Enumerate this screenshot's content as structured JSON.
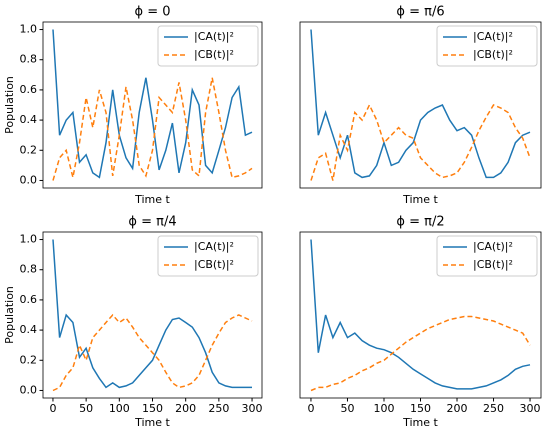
{
  "chart_data": [
    {
      "type": "line",
      "title": "ϕ = 0",
      "xlabel": "Time t",
      "ylabel": "Population",
      "legend": "upper right",
      "x": [
        0,
        10,
        20,
        30,
        40,
        50,
        60,
        70,
        80,
        90,
        100,
        110,
        120,
        130,
        140,
        150,
        160,
        170,
        180,
        190,
        200,
        210,
        220,
        230,
        240,
        250,
        260,
        270,
        280,
        290,
        300
      ],
      "xlim": [
        -15,
        315
      ],
      "ylim": [
        -0.05,
        1.05
      ],
      "yticks": [
        {
          "value": 0,
          "label": "0.0"
        },
        {
          "value": 0.2,
          "label": "0.2"
        },
        {
          "value": 0.4,
          "label": "0.4"
        },
        {
          "value": 0.6,
          "label": "0.6"
        },
        {
          "value": 0.8,
          "label": "0.8"
        },
        {
          "value": 1,
          "label": "1.0"
        }
      ],
      "series": [
        {
          "name": "|CA(t)|²",
          "color": "#1f77b4",
          "linestyle": "solid",
          "values": [
            1.0,
            0.3,
            0.4,
            0.45,
            0.12,
            0.17,
            0.05,
            0.02,
            0.25,
            0.6,
            0.3,
            0.15,
            0.08,
            0.45,
            0.68,
            0.4,
            0.07,
            0.2,
            0.38,
            0.05,
            0.25,
            0.6,
            0.5,
            0.1,
            0.05,
            0.2,
            0.35,
            0.55,
            0.62,
            0.3,
            0.32
          ]
        },
        {
          "name": "|CB(t)|²",
          "color": "#ff7f0e",
          "linestyle": "dashed",
          "values": [
            0.0,
            0.15,
            0.2,
            0.02,
            0.25,
            0.55,
            0.35,
            0.6,
            0.45,
            0.03,
            0.3,
            0.62,
            0.4,
            0.1,
            0.03,
            0.2,
            0.55,
            0.5,
            0.45,
            0.65,
            0.4,
            0.07,
            0.03,
            0.45,
            0.68,
            0.45,
            0.2,
            0.02,
            0.03,
            0.05,
            0.08
          ]
        }
      ]
    },
    {
      "type": "line",
      "title": "ϕ = π/6",
      "xlabel": "Time t",
      "legend": "upper right",
      "x": [
        0,
        10,
        20,
        30,
        40,
        50,
        60,
        70,
        80,
        90,
        100,
        110,
        120,
        130,
        140,
        150,
        160,
        170,
        180,
        190,
        200,
        210,
        220,
        230,
        240,
        250,
        260,
        270,
        280,
        290,
        300
      ],
      "xlim": [
        -15,
        315
      ],
      "ylim": [
        -0.05,
        1.05
      ],
      "series": [
        {
          "name": "|CA(t)|²",
          "color": "#1f77b4",
          "linestyle": "solid",
          "values": [
            1.0,
            0.3,
            0.45,
            0.3,
            0.15,
            0.3,
            0.05,
            0.02,
            0.03,
            0.1,
            0.25,
            0.1,
            0.12,
            0.2,
            0.25,
            0.4,
            0.45,
            0.48,
            0.5,
            0.4,
            0.33,
            0.35,
            0.3,
            0.15,
            0.02,
            0.02,
            0.05,
            0.12,
            0.25,
            0.3,
            0.32
          ]
        },
        {
          "name": "|CB(t)|²",
          "color": "#ff7f0e",
          "linestyle": "dashed",
          "values": [
            0.0,
            0.15,
            0.18,
            0.0,
            0.3,
            0.2,
            0.45,
            0.4,
            0.5,
            0.4,
            0.25,
            0.3,
            0.35,
            0.3,
            0.28,
            0.15,
            0.1,
            0.05,
            0.02,
            0.03,
            0.05,
            0.12,
            0.22,
            0.33,
            0.42,
            0.5,
            0.48,
            0.45,
            0.35,
            0.28,
            0.15
          ]
        }
      ]
    },
    {
      "type": "line",
      "title": "ϕ = π/4",
      "xlabel": "Time t",
      "ylabel": "Population",
      "legend": "upper right",
      "x": [
        0,
        10,
        20,
        30,
        40,
        50,
        60,
        70,
        80,
        90,
        100,
        110,
        120,
        130,
        140,
        150,
        160,
        170,
        180,
        190,
        200,
        210,
        220,
        230,
        240,
        250,
        260,
        270,
        280,
        290,
        300
      ],
      "xlim": [
        -15,
        315
      ],
      "ylim": [
        -0.05,
        1.05
      ],
      "xticks": [
        0,
        50,
        100,
        150,
        200,
        250,
        300
      ],
      "yticks": [
        {
          "value": 0,
          "label": "0.0"
        },
        {
          "value": 0.2,
          "label": "0.2"
        },
        {
          "value": 0.4,
          "label": "0.4"
        },
        {
          "value": 0.6,
          "label": "0.6"
        },
        {
          "value": 0.8,
          "label": "0.8"
        },
        {
          "value": 1,
          "label": "1.0"
        }
      ],
      "series": [
        {
          "name": "|CA(t)|²",
          "color": "#1f77b4",
          "linestyle": "solid",
          "values": [
            1.0,
            0.35,
            0.5,
            0.45,
            0.22,
            0.28,
            0.15,
            0.08,
            0.02,
            0.05,
            0.02,
            0.03,
            0.05,
            0.1,
            0.15,
            0.2,
            0.3,
            0.4,
            0.47,
            0.48,
            0.45,
            0.42,
            0.35,
            0.25,
            0.12,
            0.05,
            0.03,
            0.02,
            0.02,
            0.02,
            0.02
          ]
        },
        {
          "name": "|CB(t)|²",
          "color": "#ff7f0e",
          "linestyle": "dashed",
          "values": [
            0.0,
            0.02,
            0.1,
            0.15,
            0.3,
            0.2,
            0.35,
            0.4,
            0.45,
            0.5,
            0.45,
            0.48,
            0.42,
            0.35,
            0.3,
            0.25,
            0.2,
            0.12,
            0.05,
            0.02,
            0.03,
            0.05,
            0.1,
            0.2,
            0.3,
            0.38,
            0.45,
            0.48,
            0.5,
            0.48,
            0.46
          ]
        }
      ]
    },
    {
      "type": "line",
      "title": "ϕ = π/2",
      "xlabel": "Time t",
      "legend": "upper right",
      "x": [
        0,
        10,
        20,
        30,
        40,
        50,
        60,
        70,
        80,
        90,
        100,
        110,
        120,
        130,
        140,
        150,
        160,
        170,
        180,
        190,
        200,
        210,
        220,
        230,
        240,
        250,
        260,
        270,
        280,
        290,
        300
      ],
      "xlim": [
        -15,
        315
      ],
      "ylim": [
        -0.05,
        1.05
      ],
      "xticks": [
        0,
        50,
        100,
        150,
        200,
        250,
        300
      ],
      "series": [
        {
          "name": "|CA(t)|²",
          "color": "#1f77b4",
          "linestyle": "solid",
          "values": [
            1.0,
            0.25,
            0.5,
            0.35,
            0.45,
            0.35,
            0.38,
            0.33,
            0.3,
            0.28,
            0.27,
            0.25,
            0.22,
            0.18,
            0.14,
            0.11,
            0.08,
            0.05,
            0.03,
            0.02,
            0.01,
            0.01,
            0.01,
            0.02,
            0.03,
            0.05,
            0.07,
            0.1,
            0.14,
            0.16,
            0.17
          ]
        },
        {
          "name": "|CB(t)|²",
          "color": "#ff7f0e",
          "linestyle": "dashed",
          "values": [
            0.0,
            0.02,
            0.02,
            0.04,
            0.05,
            0.08,
            0.1,
            0.13,
            0.15,
            0.18,
            0.2,
            0.24,
            0.28,
            0.32,
            0.35,
            0.38,
            0.41,
            0.43,
            0.45,
            0.47,
            0.48,
            0.49,
            0.49,
            0.48,
            0.47,
            0.46,
            0.44,
            0.42,
            0.4,
            0.38,
            0.3
          ]
        }
      ]
    }
  ]
}
